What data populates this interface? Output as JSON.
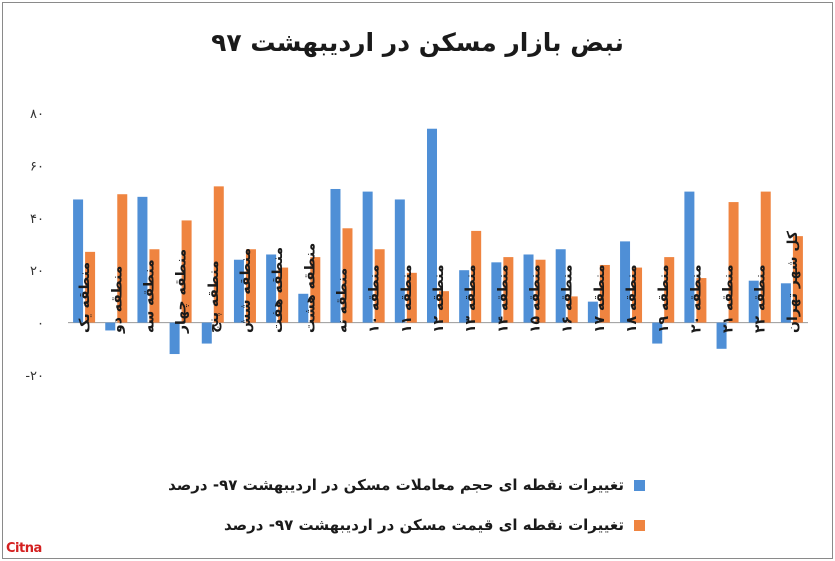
{
  "chart_data": {
    "type": "bar",
    "title": "نبض بازار مسکن در اردیبهشت ۹۷",
    "xlabel": "",
    "ylabel": "",
    "ylim": [
      -20,
      80
    ],
    "yticks": [
      -20,
      0,
      20,
      40,
      60,
      80
    ],
    "ytick_labels": [
      "-۲۰",
      "۰",
      "۲۰",
      "۴۰",
      "۶۰",
      "۸۰"
    ],
    "grid": false,
    "legend_position": "bottom",
    "categories": [
      "منطقه یک",
      "منطقه دو",
      "منطقه سه",
      "منطقه چهار",
      "منطقه پنج",
      "منطقه شش",
      "منطقه هفت",
      "منطقه هشت",
      "منطقه نه",
      "منطقه ۱۰",
      "منطقه ۱۱",
      "منطقه ۱۲",
      "منطقه ۱۳",
      "منطقه ۱۴",
      "منطقه ۱۵",
      "منطقه ۱۶",
      "منطقه ۱۷",
      "منطقه ۱۸",
      "منطقه ۱۹",
      "منطقه ۲۰",
      "منطقه ۲۱",
      "منطقه ۲۲",
      "کل شهر تهران"
    ],
    "series": [
      {
        "name": "تغییرات نقطه ای حجم معاملات مسکن در اردیبهشت ۹۷- درصد",
        "color": "#4f8fd6",
        "values": [
          47,
          -3,
          48,
          -12,
          -8,
          24,
          26,
          11,
          51,
          50,
          47,
          74,
          20,
          23,
          26,
          28,
          8,
          31,
          -8,
          50,
          -10,
          16,
          15
        ]
      },
      {
        "name": "تغییرات نقطه ای قیمت مسکن در اردیبهشت ۹۷- درصد",
        "color": "#ef8440",
        "values": [
          27,
          49,
          28,
          39,
          52,
          28,
          21,
          25,
          36,
          28,
          19,
          12,
          35,
          25,
          24,
          10,
          22,
          21,
          25,
          17,
          46,
          50,
          33
        ]
      }
    ]
  },
  "brand": {
    "logo_text": "Citna"
  }
}
